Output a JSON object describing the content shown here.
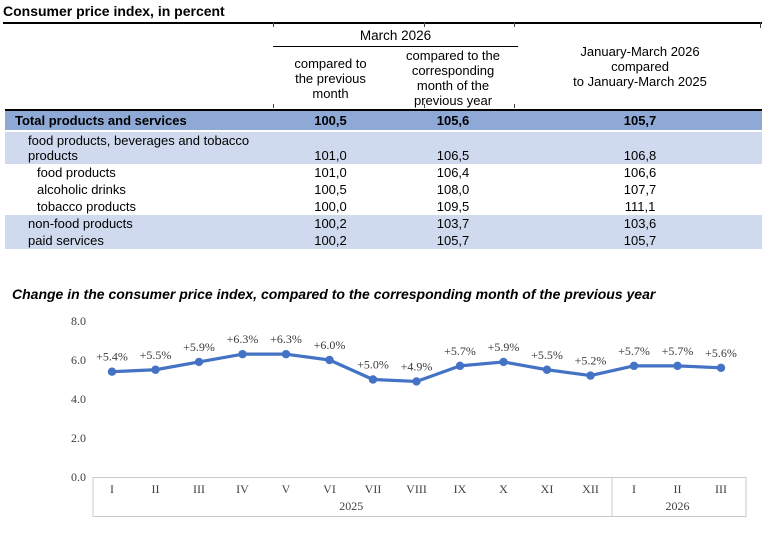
{
  "page": {
    "title": "Consumer price index, in percent"
  },
  "table": {
    "col_group_header": "March 2026",
    "columns": [
      "compared to\nthe previous\nmonth",
      "compared to the\ncorresponding\nmonth of the\nprevious year",
      "January-March 2026\ncompared\nto January-March 2025"
    ],
    "rows": [
      {
        "label": "Total products and services",
        "indent": 0,
        "style": "total",
        "values": [
          "100,5",
          "105,6",
          "105,7"
        ]
      },
      {
        "label": "food products, beverages and tobacco products",
        "indent": 1,
        "style": "shaded",
        "values": [
          "101,0",
          "106,5",
          "106,8"
        ]
      },
      {
        "label": "food products",
        "indent": 2,
        "style": "plain",
        "values": [
          "101,0",
          "106,4",
          "106,6"
        ]
      },
      {
        "label": "alcoholic drinks",
        "indent": 2,
        "style": "plain",
        "values": [
          "100,5",
          "108,0",
          "107,7"
        ]
      },
      {
        "label": "tobacco products",
        "indent": 2,
        "style": "plain",
        "values": [
          "100,0",
          "109,5",
          "111,1"
        ]
      },
      {
        "label": "non-food products",
        "indent": 1,
        "style": "shaded",
        "values": [
          "100,2",
          "103,7",
          "103,6"
        ]
      },
      {
        "label": "paid services",
        "indent": 1,
        "style": "shaded",
        "values": [
          "100,2",
          "105,7",
          "105,7"
        ]
      }
    ]
  },
  "chart_data": {
    "type": "line",
    "title": "Change in the consumer price index, compared to the corresponding month of the previous year",
    "x": [
      "I",
      "II",
      "III",
      "IV",
      "V",
      "VI",
      "VII",
      "VIII",
      "IX",
      "X",
      "XI",
      "XII",
      "I",
      "II",
      "III"
    ],
    "x_groups": [
      {
        "label": "2025",
        "from": 0,
        "to": 11
      },
      {
        "label": "2026",
        "from": 12,
        "to": 14
      }
    ],
    "values": [
      5.4,
      5.5,
      5.9,
      6.3,
      6.3,
      6.0,
      5.0,
      4.9,
      5.7,
      5.9,
      5.5,
      5.2,
      5.7,
      5.7,
      5.6
    ],
    "point_labels": [
      "+5.4%",
      "+5.5%",
      "+5.9%",
      "+6.3%",
      "+6.3%",
      "+6.0%",
      "+5.0%",
      "+4.9%",
      "+5.7%",
      "+5.9%",
      "+5.5%",
      "+5.2%",
      "+5.7%",
      "+5.7%",
      "+5.6%"
    ],
    "ylim": [
      0,
      8
    ],
    "yticks": [
      {
        "value": 0,
        "label": "0.0"
      },
      {
        "value": 2,
        "label": "2.0"
      },
      {
        "value": 4,
        "label": "4.0"
      },
      {
        "value": 6,
        "label": "6.0"
      },
      {
        "value": 8,
        "label": "8.0"
      }
    ],
    "grid": false,
    "legend": "none",
    "line_color": "#4472c4"
  },
  "colors": {
    "total_row_bg": "#8ea9d6",
    "band_row_bg": "#cfdaee",
    "rule": "#000000",
    "axis_box_border": "#c9c9c9",
    "chart_text": "#404040"
  }
}
